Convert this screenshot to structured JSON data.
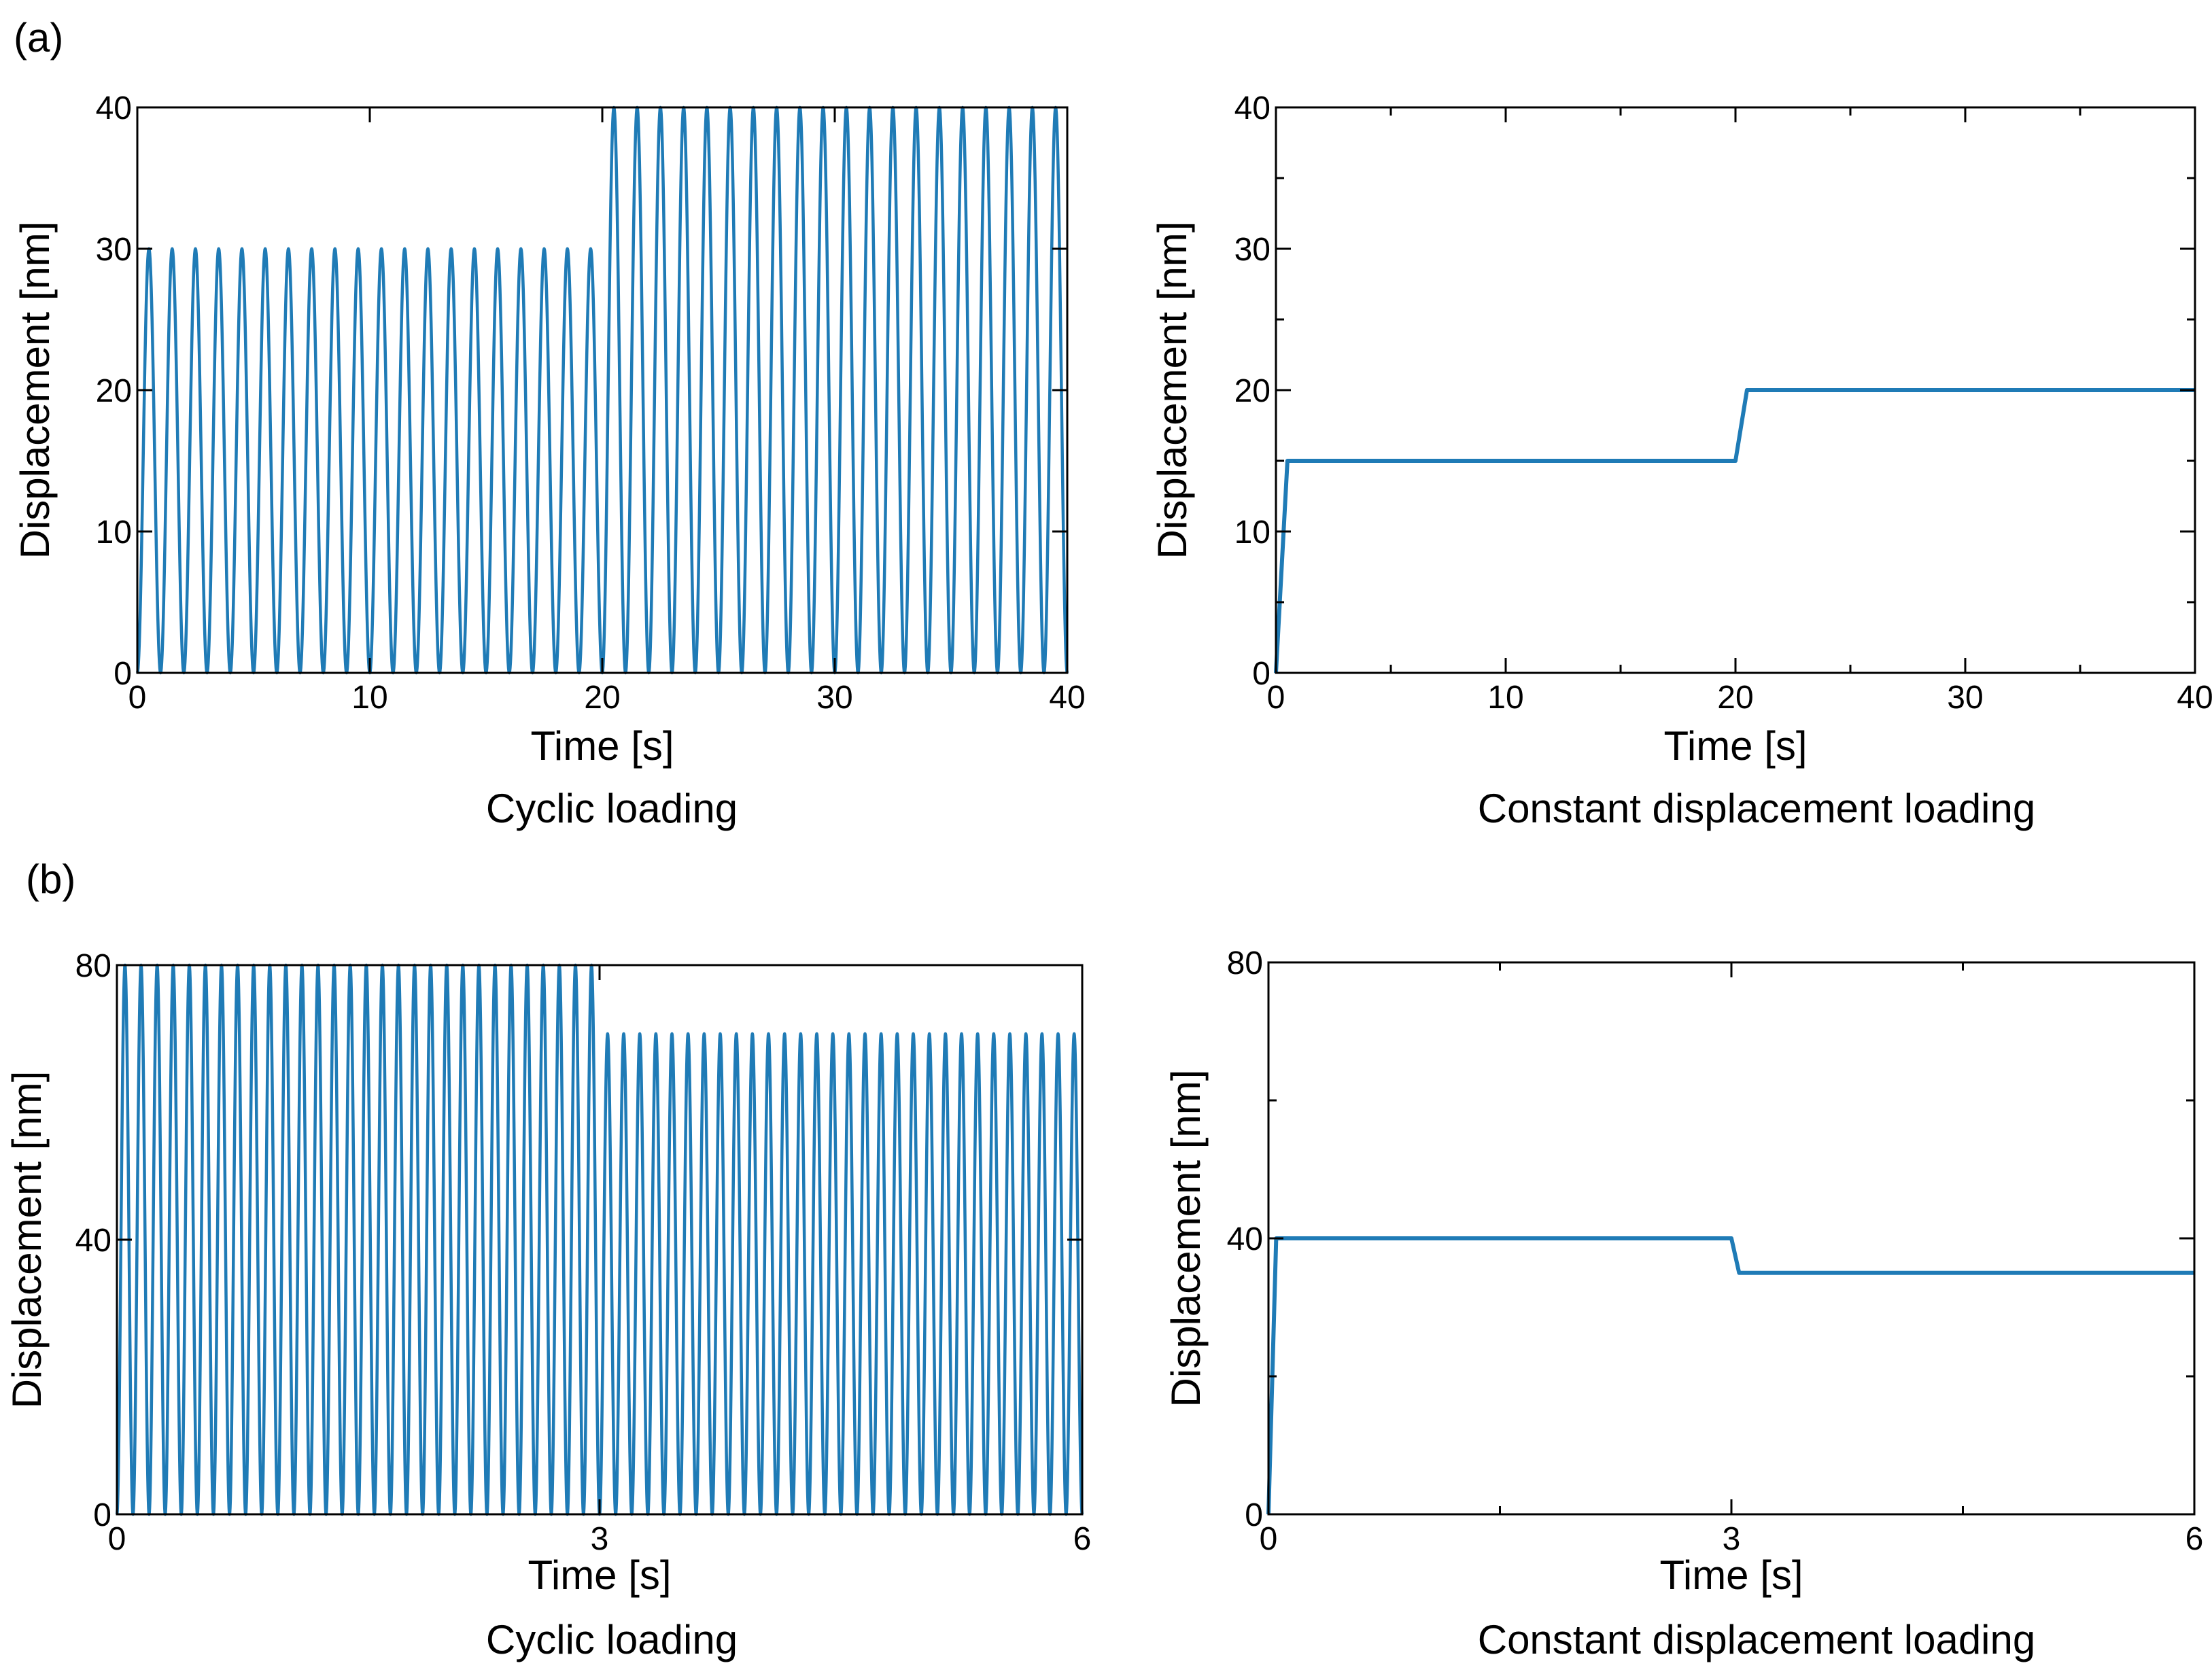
{
  "colors": {
    "series": "#1f7bb6",
    "axis": "#000000",
    "background": "#ffffff"
  },
  "panels": [
    {
      "label": "(a)"
    },
    {
      "label": "(b)"
    }
  ],
  "chart_data": [
    {
      "type": "line",
      "panel": "(a)",
      "caption": "Cyclic loading",
      "xlabel": "Time [s]",
      "ylabel": "Displacement [nm]",
      "xlim": [
        0,
        40
      ],
      "ylim": [
        0,
        40
      ],
      "xticks": [
        0,
        10,
        20,
        30,
        40
      ],
      "yticks": [
        0,
        10,
        20,
        30,
        40
      ],
      "minor_x": [],
      "minor_y": [],
      "series": [
        {
          "name": "Displacement",
          "waveform": "sine",
          "segments": [
            {
              "t_start": 0,
              "t_end": 20,
              "min": 0,
              "max": 30,
              "cycles": 20
            },
            {
              "t_start": 20,
              "t_end": 40,
              "min": 0,
              "max": 40,
              "cycles": 20
            }
          ]
        }
      ]
    },
    {
      "type": "line",
      "panel": "(a)",
      "caption": "Constant displacement loading",
      "xlabel": "Time [s]",
      "ylabel": "Displacement [nm]",
      "xlim": [
        0,
        40
      ],
      "ylim": [
        0,
        40
      ],
      "xticks": [
        0,
        10,
        20,
        30,
        40
      ],
      "yticks": [
        0,
        10,
        20,
        30,
        40
      ],
      "minor_x": [
        5,
        15,
        25,
        35
      ],
      "minor_y": [
        5,
        15,
        25,
        35
      ],
      "series": [
        {
          "name": "Displacement",
          "waveform": "piecewise",
          "x": [
            0,
            0.5,
            20,
            20.5,
            40
          ],
          "y": [
            0,
            15,
            15,
            20,
            20
          ]
        }
      ]
    },
    {
      "type": "line",
      "panel": "(b)",
      "caption": "Cyclic loading",
      "xlabel": "Time [s]",
      "ylabel": "Displacement [nm]",
      "xlim": [
        0,
        6
      ],
      "ylim": [
        0,
        80
      ],
      "xticks": [
        0,
        3,
        6
      ],
      "yticks": [
        0,
        40,
        80
      ],
      "minor_x": [],
      "minor_y": [],
      "series": [
        {
          "name": "Displacement",
          "waveform": "sine",
          "segments": [
            {
              "t_start": 0,
              "t_end": 3,
              "min": 0,
              "max": 80,
              "cycles": 30
            },
            {
              "t_start": 3,
              "t_end": 6,
              "min": 0,
              "max": 70,
              "cycles": 30
            }
          ]
        }
      ]
    },
    {
      "type": "line",
      "panel": "(b)",
      "caption": "Constant displacement loading",
      "xlabel": "Time [s]",
      "ylabel": "Displacement [nm]",
      "xlim": [
        0,
        6
      ],
      "ylim": [
        0,
        80
      ],
      "xticks": [
        0,
        3,
        6
      ],
      "yticks": [
        0,
        40,
        80
      ],
      "minor_x": [
        1.5,
        4.5
      ],
      "minor_y": [
        20,
        60
      ],
      "series": [
        {
          "name": "Displacement",
          "waveform": "piecewise",
          "x": [
            0,
            0.05,
            3,
            3.05,
            6
          ],
          "y": [
            0,
            40,
            40,
            35,
            35
          ]
        }
      ]
    }
  ]
}
